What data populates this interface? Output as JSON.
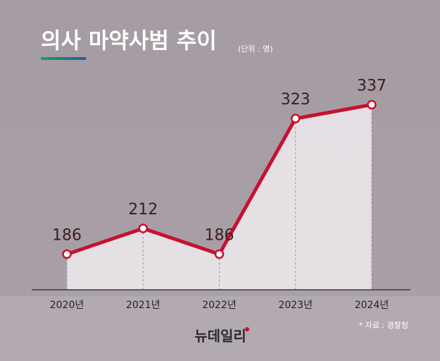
{
  "chart_data": {
    "type": "line",
    "title": "의사 마약사범 추이",
    "subtitle": "(단위 : 명)",
    "categories": [
      "2020년",
      "2021년",
      "2022년",
      "2023년",
      "2024년"
    ],
    "values": [
      186,
      212,
      186,
      323,
      337
    ],
    "color": "#c8102e",
    "ylim": [
      150,
      400
    ],
    "source": "* 자료 : 경찰청",
    "logo": "뉴데일리"
  }
}
